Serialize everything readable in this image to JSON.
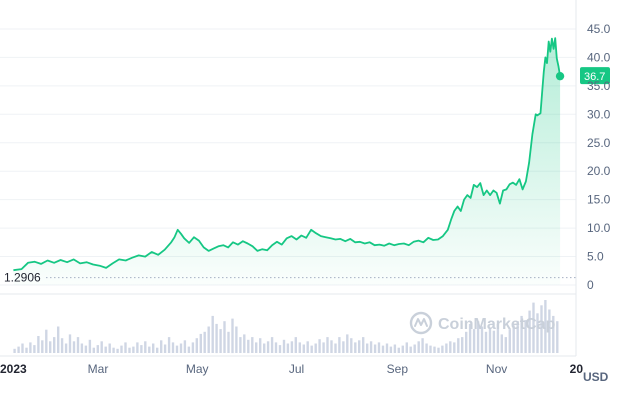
{
  "chart_data": {
    "type": "area",
    "title": "",
    "xlabel": "",
    "ylabel": "",
    "unit": "USD",
    "ylim": [
      0,
      47
    ],
    "y_ticks": [
      "45.0",
      "40.0",
      "35.0",
      "30.0",
      "25.0",
      "20.0",
      "15.0",
      "10.0",
      "5.0",
      "0"
    ],
    "y_tick_values": [
      45,
      40,
      35,
      30,
      25,
      20,
      15,
      10,
      5,
      0
    ],
    "x_ticks": [
      "2023",
      "Mar",
      "May",
      "Jul",
      "Sep",
      "Nov",
      "20"
    ],
    "x_tick_days": [
      0,
      59,
      120,
      181,
      243,
      304,
      353
    ],
    "x_range_days": [
      0,
      371
    ],
    "opening_price_label": "1.2906",
    "opening_price": 1.2906,
    "current_price_label": "36.7",
    "current_price": 36.7,
    "line_color": "#16c784",
    "series": [
      {
        "values": [
          [
            7,
            2.6
          ],
          [
            12,
            2.8
          ],
          [
            16,
            3.9
          ],
          [
            20,
            4.1
          ],
          [
            24,
            3.7
          ],
          [
            28,
            4.3
          ],
          [
            32,
            3.9
          ],
          [
            36,
            4.4
          ],
          [
            40,
            4.0
          ],
          [
            44,
            4.5
          ],
          [
            48,
            3.8
          ],
          [
            52,
            4.0
          ],
          [
            56,
            3.6
          ],
          [
            60,
            3.4
          ],
          [
            64,
            3.0
          ],
          [
            68,
            3.8
          ],
          [
            72,
            4.5
          ],
          [
            76,
            4.3
          ],
          [
            80,
            4.8
          ],
          [
            84,
            5.2
          ],
          [
            88,
            5.0
          ],
          [
            92,
            5.8
          ],
          [
            96,
            5.3
          ],
          [
            100,
            6.2
          ],
          [
            104,
            7.5
          ],
          [
            106,
            8.4
          ],
          [
            108,
            9.7
          ],
          [
            110,
            9.0
          ],
          [
            112,
            8.2
          ],
          [
            115,
            7.4
          ],
          [
            118,
            8.4
          ],
          [
            121,
            7.8
          ],
          [
            124,
            6.6
          ],
          [
            127,
            6.0
          ],
          [
            130,
            6.4
          ],
          [
            133,
            6.8
          ],
          [
            136,
            7.0
          ],
          [
            139,
            6.6
          ],
          [
            142,
            7.5
          ],
          [
            145,
            7.1
          ],
          [
            148,
            7.7
          ],
          [
            151,
            7.3
          ],
          [
            154,
            6.8
          ],
          [
            157,
            6.0
          ],
          [
            160,
            6.3
          ],
          [
            163,
            6.1
          ],
          [
            166,
            7.0
          ],
          [
            169,
            7.6
          ],
          [
            172,
            7.1
          ],
          [
            175,
            8.2
          ],
          [
            178,
            8.6
          ],
          [
            181,
            8.0
          ],
          [
            184,
            8.7
          ],
          [
            187,
            8.3
          ],
          [
            190,
            9.7
          ],
          [
            193,
            9.1
          ],
          [
            196,
            8.6
          ],
          [
            199,
            8.4
          ],
          [
            202,
            8.2
          ],
          [
            205,
            8.0
          ],
          [
            208,
            8.1
          ],
          [
            211,
            7.7
          ],
          [
            214,
            8.1
          ],
          [
            217,
            7.5
          ],
          [
            220,
            7.6
          ],
          [
            223,
            7.3
          ],
          [
            226,
            7.5
          ],
          [
            229,
            7.0
          ],
          [
            232,
            7.1
          ],
          [
            235,
            6.9
          ],
          [
            238,
            7.3
          ],
          [
            241,
            7.0
          ],
          [
            244,
            7.2
          ],
          [
            247,
            7.3
          ],
          [
            250,
            7.0
          ],
          [
            253,
            7.6
          ],
          [
            256,
            7.8
          ],
          [
            259,
            7.5
          ],
          [
            262,
            8.3
          ],
          [
            265,
            7.9
          ],
          [
            268,
            8.0
          ],
          [
            271,
            8.6
          ],
          [
            274,
            9.7
          ],
          [
            276,
            11.5
          ],
          [
            278,
            13.0
          ],
          [
            280,
            13.8
          ],
          [
            282,
            13.0
          ],
          [
            284,
            15.0
          ],
          [
            286,
            15.8
          ],
          [
            288,
            15.3
          ],
          [
            290,
            17.6
          ],
          [
            292,
            17.2
          ],
          [
            294,
            17.9
          ],
          [
            296,
            15.8
          ],
          [
            298,
            16.6
          ],
          [
            300,
            15.8
          ],
          [
            302,
            16.6
          ],
          [
            304,
            16.2
          ],
          [
            306,
            14.3
          ],
          [
            308,
            16.6
          ],
          [
            310,
            16.8
          ],
          [
            312,
            17.7
          ],
          [
            314,
            18.0
          ],
          [
            316,
            17.6
          ],
          [
            318,
            18.6
          ],
          [
            320,
            16.8
          ],
          [
            322,
            18.2
          ],
          [
            324,
            21.5
          ],
          [
            326,
            26.5
          ],
          [
            328,
            30.0
          ],
          [
            329,
            29.8
          ],
          [
            331,
            30.2
          ],
          [
            332,
            34.0
          ],
          [
            333,
            37.5
          ],
          [
            334,
            40.0
          ],
          [
            335,
            39.0
          ],
          [
            336,
            42.8
          ],
          [
            337,
            41.0
          ],
          [
            338,
            43.3
          ],
          [
            339,
            41.5
          ],
          [
            340,
            43.4
          ],
          [
            341,
            39.8
          ],
          [
            342,
            38.5
          ],
          [
            343,
            36.7
          ]
        ]
      }
    ],
    "volume": [
      0.08,
      0.12,
      0.18,
      0.1,
      0.2,
      0.15,
      0.32,
      0.24,
      0.44,
      0.22,
      0.3,
      0.5,
      0.28,
      0.18,
      0.35,
      0.22,
      0.3,
      0.18,
      0.14,
      0.25,
      0.1,
      0.15,
      0.22,
      0.12,
      0.18,
      0.1,
      0.08,
      0.14,
      0.2,
      0.1,
      0.12,
      0.2,
      0.15,
      0.22,
      0.12,
      0.18,
      0.1,
      0.24,
      0.16,
      0.3,
      0.2,
      0.14,
      0.18,
      0.24,
      0.12,
      0.2,
      0.28,
      0.36,
      0.4,
      0.5,
      0.7,
      0.55,
      0.45,
      0.6,
      0.4,
      0.65,
      0.5,
      0.3,
      0.35,
      0.25,
      0.3,
      0.2,
      0.28,
      0.18,
      0.22,
      0.3,
      0.2,
      0.15,
      0.25,
      0.18,
      0.22,
      0.3,
      0.2,
      0.16,
      0.22,
      0.14,
      0.18,
      0.26,
      0.2,
      0.3,
      0.24,
      0.18,
      0.3,
      0.22,
      0.35,
      0.28,
      0.2,
      0.24,
      0.3,
      0.18,
      0.22,
      0.16,
      0.2,
      0.14,
      0.18,
      0.12,
      0.16,
      0.1,
      0.14,
      0.2,
      0.12,
      0.16,
      0.22,
      0.28,
      0.18,
      0.14,
      0.12,
      0.1,
      0.14,
      0.18,
      0.22,
      0.2,
      0.28,
      0.3,
      0.4,
      0.55,
      0.45,
      0.6,
      0.5,
      0.4,
      0.48,
      0.42,
      0.55,
      0.35,
      0.3,
      0.45,
      0.52,
      0.6,
      0.7,
      0.62,
      0.8,
      0.95,
      0.75,
      0.9,
      1.0,
      0.82,
      0.7,
      0.6
    ]
  },
  "watermark": {
    "text": "CoinMarketCap",
    "icon": "coinmarketcap-logo"
  }
}
